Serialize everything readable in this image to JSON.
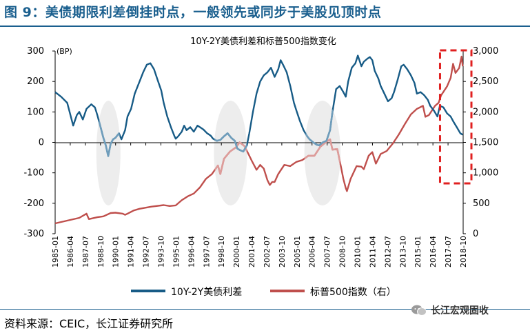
{
  "figure": {
    "title": "图 9：美债期限利差倒挂时点，一般领先或同步于美股见顶时点",
    "source": "资料来源：CEIC，长江证券研究所",
    "watermark": "长江宏观固收"
  },
  "colors": {
    "title": "#1a5f8e",
    "spread": "#175b86",
    "spread_faded": "#6f9dbb",
    "sp500": "#bf4f4c",
    "sp500_faded": "#dd9c9a",
    "highlight_box": "#e02020",
    "ellipse": "#ededed"
  },
  "chart_data": {
    "type": "line",
    "title": "10Y-2Y美债利差和标普500指数变化",
    "y_left_unit": "(BP)",
    "y_left_range": [
      -300,
      300
    ],
    "y_left_ticks": [
      "300",
      "200",
      "100",
      "0",
      "-100",
      "-200",
      "-300"
    ],
    "y_right_range": [
      0,
      3000
    ],
    "y_right_ticks": [
      "3,000",
      "2,500",
      "2,000",
      "1,500",
      "1,000",
      "500",
      "0"
    ],
    "x_tick_labels": [
      "1985-01",
      "1986-04",
      "1987-07",
      "1988-10",
      "1990-01",
      "1991-04",
      "1992-07",
      "1993-10",
      "1995-01",
      "1996-04",
      "1997-07",
      "1998-10",
      "2000-01",
      "2001-04",
      "2002-07",
      "2003-10",
      "2005-01",
      "2006-04",
      "2007-07",
      "2008-10",
      "2010-01",
      "2011-04",
      "2012-07",
      "2013-10",
      "2015-01",
      "2016-04",
      "2017-07",
      "2018-10"
    ],
    "legend": [
      "10Y-2Y美债利差",
      "标普500指数（右）"
    ],
    "highlight_period": [
      "2016-12",
      "2018-10"
    ],
    "shaded_periods": [
      [
        "1988-06",
        "1990-06"
      ],
      [
        "1998-03",
        "2000-12"
      ],
      [
        "2005-09",
        "2008-09"
      ]
    ],
    "series": [
      {
        "name": "10Y-2Y美债利差",
        "axis": "left",
        "points": [
          [
            1985.0,
            165
          ],
          [
            1985.5,
            150
          ],
          [
            1986.0,
            130
          ],
          [
            1986.2,
            100
          ],
          [
            1986.5,
            55
          ],
          [
            1986.8,
            90
          ],
          [
            1987.0,
            100
          ],
          [
            1987.3,
            75
          ],
          [
            1987.6,
            110
          ],
          [
            1988.0,
            125
          ],
          [
            1988.3,
            115
          ],
          [
            1988.5,
            90
          ],
          [
            1988.8,
            45
          ],
          [
            1989.0,
            15
          ],
          [
            1989.2,
            -10
          ],
          [
            1989.4,
            -45
          ],
          [
            1989.6,
            -5
          ],
          [
            1989.8,
            10
          ],
          [
            1990.0,
            15
          ],
          [
            1990.3,
            30
          ],
          [
            1990.5,
            10
          ],
          [
            1990.8,
            40
          ],
          [
            1991.0,
            85
          ],
          [
            1991.3,
            110
          ],
          [
            1991.6,
            160
          ],
          [
            1992.0,
            200
          ],
          [
            1992.3,
            230
          ],
          [
            1992.6,
            255
          ],
          [
            1992.9,
            260
          ],
          [
            1993.2,
            240
          ],
          [
            1993.5,
            205
          ],
          [
            1993.8,
            170
          ],
          [
            1994.0,
            130
          ],
          [
            1994.3,
            85
          ],
          [
            1994.6,
            50
          ],
          [
            1994.9,
            20
          ],
          [
            1995.0,
            12
          ],
          [
            1995.2,
            20
          ],
          [
            1995.5,
            35
          ],
          [
            1995.7,
            55
          ],
          [
            1995.9,
            40
          ],
          [
            1996.2,
            50
          ],
          [
            1996.5,
            35
          ],
          [
            1996.8,
            55
          ],
          [
            1997.0,
            50
          ],
          [
            1997.3,
            42
          ],
          [
            1997.6,
            30
          ],
          [
            1997.9,
            22
          ],
          [
            1998.1,
            12
          ],
          [
            1998.4,
            5
          ],
          [
            1998.7,
            8
          ],
          [
            1999.0,
            20
          ],
          [
            1999.3,
            30
          ],
          [
            1999.6,
            15
          ],
          [
            1999.9,
            5
          ],
          [
            2000.1,
            -20
          ],
          [
            2000.3,
            -25
          ],
          [
            2000.6,
            -30
          ],
          [
            2000.9,
            -10
          ],
          [
            2001.1,
            30
          ],
          [
            2001.4,
            100
          ],
          [
            2001.7,
            160
          ],
          [
            2002.0,
            200
          ],
          [
            2002.3,
            220
          ],
          [
            2002.6,
            230
          ],
          [
            2002.9,
            245
          ],
          [
            2003.2,
            215
          ],
          [
            2003.5,
            240
          ],
          [
            2003.7,
            270
          ],
          [
            2003.9,
            255
          ],
          [
            2004.2,
            230
          ],
          [
            2004.5,
            185
          ],
          [
            2004.8,
            130
          ],
          [
            2005.0,
            105
          ],
          [
            2005.3,
            70
          ],
          [
            2005.6,
            40
          ],
          [
            2005.9,
            20
          ],
          [
            2006.1,
            10
          ],
          [
            2006.4,
            0
          ],
          [
            2006.7,
            -8
          ],
          [
            2006.9,
            -10
          ],
          [
            2007.2,
            0
          ],
          [
            2007.5,
            5
          ],
          [
            2007.8,
            40
          ],
          [
            2008.0,
            100
          ],
          [
            2008.3,
            175
          ],
          [
            2008.6,
            185
          ],
          [
            2008.9,
            165
          ],
          [
            2009.1,
            150
          ],
          [
            2009.3,
            200
          ],
          [
            2009.6,
            245
          ],
          [
            2009.9,
            260
          ],
          [
            2010.1,
            285
          ],
          [
            2010.4,
            250
          ],
          [
            2010.6,
            265
          ],
          [
            2010.9,
            275
          ],
          [
            2011.1,
            280
          ],
          [
            2011.3,
            270
          ],
          [
            2011.5,
            235
          ],
          [
            2011.8,
            210
          ],
          [
            2012.0,
            185
          ],
          [
            2012.3,
            160
          ],
          [
            2012.6,
            135
          ],
          [
            2012.9,
            145
          ],
          [
            2013.1,
            165
          ],
          [
            2013.4,
            205
          ],
          [
            2013.7,
            250
          ],
          [
            2013.9,
            255
          ],
          [
            2014.2,
            240
          ],
          [
            2014.5,
            220
          ],
          [
            2014.8,
            195
          ],
          [
            2015.0,
            160
          ],
          [
            2015.3,
            165
          ],
          [
            2015.6,
            155
          ],
          [
            2015.9,
            140
          ],
          [
            2016.1,
            120
          ],
          [
            2016.4,
            105
          ],
          [
            2016.7,
            85
          ],
          [
            2016.9,
            120
          ],
          [
            2017.2,
            115
          ],
          [
            2017.5,
            95
          ],
          [
            2017.8,
            85
          ],
          [
            2018.0,
            70
          ],
          [
            2018.3,
            50
          ],
          [
            2018.6,
            30
          ],
          [
            2018.8,
            25
          ]
        ]
      },
      {
        "name": "标普500指数（右）",
        "axis": "right",
        "points": [
          [
            1985.0,
            170
          ],
          [
            1986.0,
            215
          ],
          [
            1987.0,
            260
          ],
          [
            1987.6,
            330
          ],
          [
            1987.8,
            240
          ],
          [
            1988.5,
            270
          ],
          [
            1989.0,
            285
          ],
          [
            1989.6,
            340
          ],
          [
            1990.0,
            345
          ],
          [
            1990.6,
            330
          ],
          [
            1990.8,
            310
          ],
          [
            1991.0,
            330
          ],
          [
            1991.5,
            380
          ],
          [
            1992.0,
            410
          ],
          [
            1993.0,
            445
          ],
          [
            1994.0,
            470
          ],
          [
            1994.5,
            455
          ],
          [
            1995.0,
            465
          ],
          [
            1995.5,
            550
          ],
          [
            1996.0,
            615
          ],
          [
            1996.5,
            660
          ],
          [
            1997.0,
            760
          ],
          [
            1997.5,
            900
          ],
          [
            1998.0,
            980
          ],
          [
            1998.5,
            1120
          ],
          [
            1998.7,
            980
          ],
          [
            1999.0,
            1230
          ],
          [
            1999.5,
            1350
          ],
          [
            2000.0,
            1420
          ],
          [
            2000.3,
            1500
          ],
          [
            2000.7,
            1440
          ],
          [
            2001.0,
            1320
          ],
          [
            2001.3,
            1200
          ],
          [
            2001.7,
            1050
          ],
          [
            2002.0,
            1130
          ],
          [
            2002.3,
            1070
          ],
          [
            2002.6,
            880
          ],
          [
            2002.8,
            800
          ],
          [
            2003.0,
            850
          ],
          [
            2003.2,
            850
          ],
          [
            2003.5,
            980
          ],
          [
            2004.0,
            1130
          ],
          [
            2004.5,
            1110
          ],
          [
            2005.0,
            1180
          ],
          [
            2005.5,
            1210
          ],
          [
            2006.0,
            1280
          ],
          [
            2006.5,
            1280
          ],
          [
            2007.0,
            1430
          ],
          [
            2007.5,
            1510
          ],
          [
            2007.8,
            1550
          ],
          [
            2008.0,
            1380
          ],
          [
            2008.4,
            1390
          ],
          [
            2008.7,
            1100
          ],
          [
            2008.9,
            900
          ],
          [
            2009.1,
            750
          ],
          [
            2009.2,
            700
          ],
          [
            2009.5,
            900
          ],
          [
            2010.0,
            1110
          ],
          [
            2010.4,
            1100
          ],
          [
            2010.6,
            1060
          ],
          [
            2011.0,
            1280
          ],
          [
            2011.3,
            1340
          ],
          [
            2011.6,
            1150
          ],
          [
            2012.0,
            1310
          ],
          [
            2012.5,
            1360
          ],
          [
            2013.0,
            1480
          ],
          [
            2013.5,
            1630
          ],
          [
            2014.0,
            1800
          ],
          [
            2014.5,
            1960
          ],
          [
            2015.0,
            2050
          ],
          [
            2015.5,
            2100
          ],
          [
            2015.7,
            1920
          ],
          [
            2016.0,
            1950
          ],
          [
            2016.5,
            2100
          ],
          [
            2016.8,
            2150
          ],
          [
            2017.0,
            2270
          ],
          [
            2017.5,
            2420
          ],
          [
            2017.8,
            2560
          ],
          [
            2018.0,
            2790
          ],
          [
            2018.2,
            2640
          ],
          [
            2018.5,
            2720
          ],
          [
            2018.7,
            2910
          ],
          [
            2018.8,
            2750
          ]
        ]
      }
    ]
  }
}
